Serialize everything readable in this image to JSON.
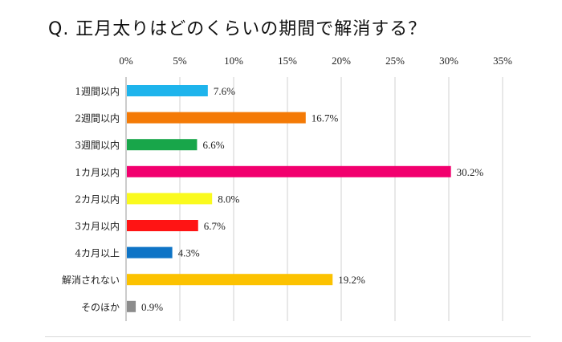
{
  "chart_data": {
    "type": "bar",
    "orientation": "horizontal",
    "title": "Q. 正月太りはどのくらいの期間で解消する？",
    "xlabel": "",
    "ylabel": "",
    "xlim": [
      0,
      35
    ],
    "x_ticks": [
      0,
      5,
      10,
      15,
      20,
      25,
      30,
      35
    ],
    "tick_labels": [
      "0%",
      "5%",
      "10%",
      "15%",
      "20%",
      "25%",
      "30%",
      "35%"
    ],
    "x_axis_position": "top",
    "grid": true,
    "legend": "none",
    "categories": [
      "1週間以内",
      "2週間以内",
      "3週間以内",
      "1カ月以内",
      "2カ月以内",
      "3カ月以内",
      "4カ月以上",
      "解消されない",
      "そのほか"
    ],
    "values": [
      7.6,
      16.7,
      6.6,
      30.2,
      8.0,
      6.7,
      4.3,
      19.2,
      0.9
    ],
    "value_labels": [
      "7.6%",
      "16.7%",
      "6.6%",
      "30.2%",
      "8.0%",
      "6.7%",
      "4.3%",
      "19.2%",
      "0.9%"
    ],
    "colors": [
      "#1EB4EC",
      "#F47A06",
      "#18A64A",
      "#F2006E",
      "#FAFA1E",
      "#FF1414",
      "#0E74C6",
      "#FCC200",
      "#8C8C8C"
    ]
  }
}
